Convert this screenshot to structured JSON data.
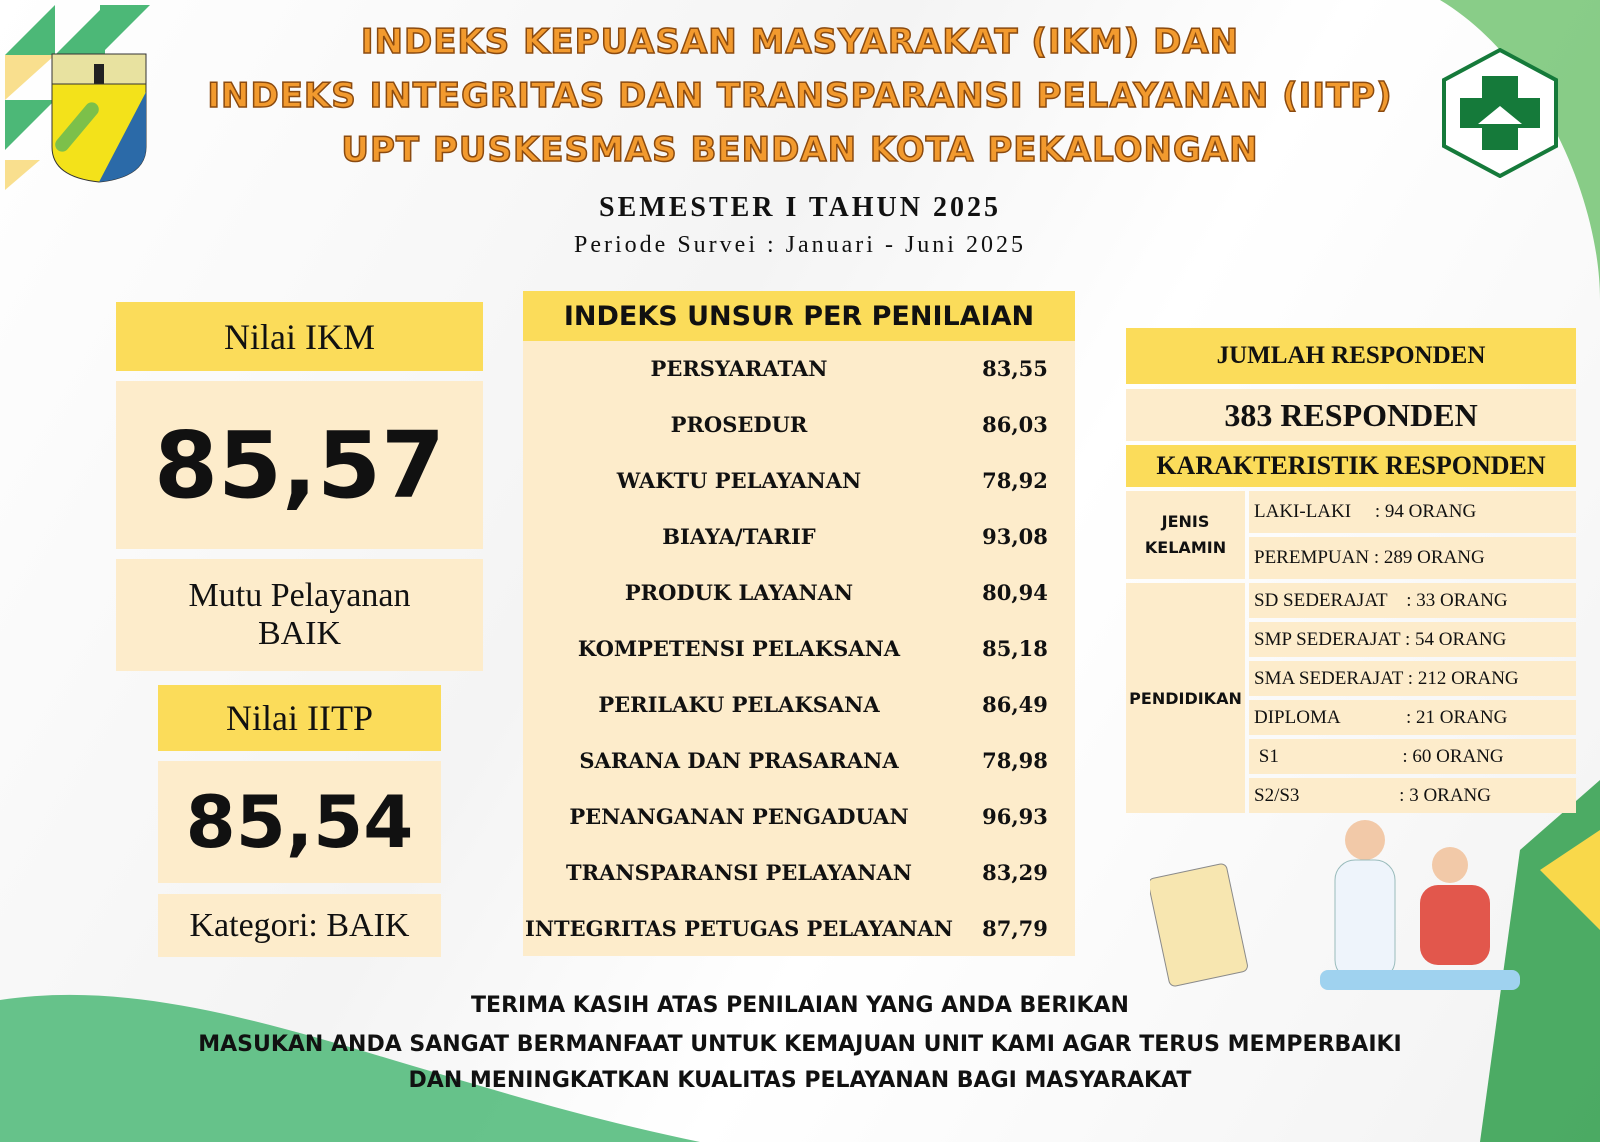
{
  "header": {
    "title_lines": [
      "INDEKS KEPUASAN MASYARAKAT (IKM) DAN",
      "INDEKS INTEGRITAS DAN TRANSPARANSI PELAYANAN (IITP)",
      "UPT PUSKESMAS BENDAN KOTA PEKALONGAN"
    ],
    "semester": "SEMESTER I TAHUN 2025",
    "periode": "Periode Survei : Januari - Juni 2025"
  },
  "ikm": {
    "label": "Nilai IKM",
    "value": "85,57",
    "mutu_label": "Mutu Pelayanan",
    "mutu_value": "BAIK"
  },
  "iitp": {
    "label": "Nilai IITP",
    "value": "85,54",
    "kategori": "Kategori: BAIK"
  },
  "unsur": {
    "title": "INDEKS UNSUR PER PENILAIAN",
    "rows": [
      {
        "name": "PERSYARATAN",
        "value": "83,55"
      },
      {
        "name": "PROSEDUR",
        "value": "86,03"
      },
      {
        "name": "WAKTU PELAYANAN",
        "value": "78,92"
      },
      {
        "name": "BIAYA/TARIF",
        "value": "93,08"
      },
      {
        "name": "PRODUK LAYANAN",
        "value": "80,94"
      },
      {
        "name": "KOMPETENSI PELAKSANA",
        "value": "85,18"
      },
      {
        "name": "PERILAKU PELAKSANA",
        "value": "86,49"
      },
      {
        "name": "SARANA DAN PRASARANA",
        "value": "78,98"
      },
      {
        "name": "PENANGANAN PENGADUAN",
        "value": "96,93"
      },
      {
        "name": "TRANSPARANSI PELAYANAN",
        "value": "83,29"
      },
      {
        "name": "INTEGRITAS PETUGAS PELAYANAN",
        "value": "87,79"
      }
    ]
  },
  "responden": {
    "title": "JUMLAH RESPONDEN",
    "total": "383 RESPONDEN",
    "karakteristik_title": "KARAKTERISTIK RESPONDEN",
    "jenis_kelamin": {
      "label": "JENIS KELAMIN",
      "items": [
        "LAKI-LAKI     : 94 ORANG",
        "PEREMPUAN : 289 ORANG"
      ]
    },
    "pendidikan": {
      "label": "PENDIDIKAN",
      "items": [
        "SD SEDERAJAT    : 33 ORANG",
        "SMP SEDERAJAT : 54 ORANG",
        "SMA SEDERAJAT : 212 ORANG",
        "DIPLOMA              : 21 ORANG",
        " S1                          : 60 ORANG",
        "S2/S3                     : 3 ORANG"
      ]
    }
  },
  "footer": [
    "TERIMA KASIH ATAS PENILAIAN YANG ANDA BERIKAN",
    "MASUKAN ANDA SANGAT BERMANFAAT UNTUK KEMAJUAN UNIT KAMI AGAR TERUS MEMPERBAIKI",
    "DAN MENINGKATKAN KUALITAS PELAYANAN BAGI MASYARAKAT"
  ],
  "colors": {
    "yellow": "#fbdc5a",
    "cream": "#fdeccb",
    "title_orange": "#f29a2e",
    "green": "#2e9e4a"
  }
}
